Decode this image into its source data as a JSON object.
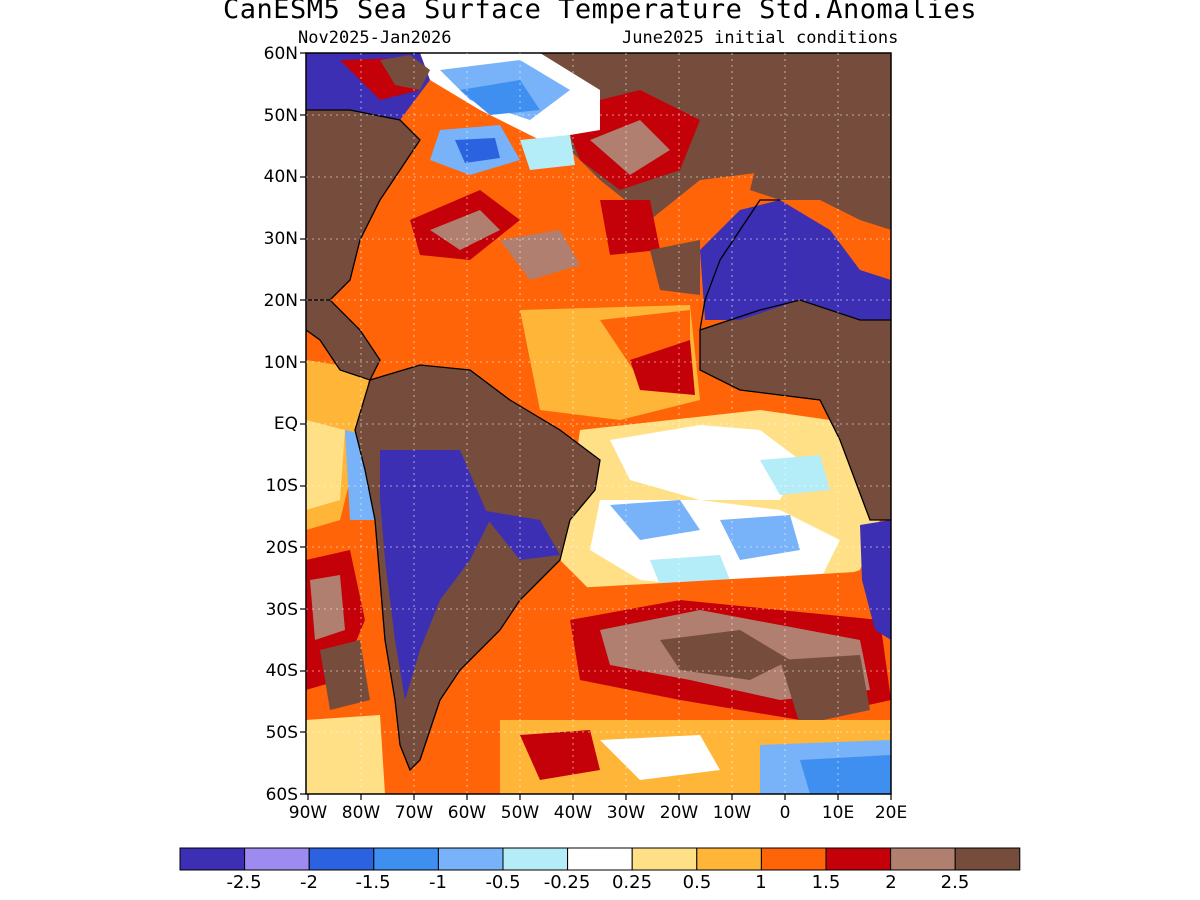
{
  "title": "CanESM5 Sea Surface Temperature Std.Anomalies",
  "subtitle_left": "Nov2025-Jan2026",
  "subtitle_right": "June2025 initial conditions",
  "y_axis_labels": [
    "60N",
    "50N",
    "40N",
    "30N",
    "20N",
    "10N",
    "EQ",
    "10S",
    "20S",
    "30S",
    "40S",
    "50S",
    "60S"
  ],
  "x_axis_labels": [
    "90W",
    "80W",
    "70W",
    "60W",
    "50W",
    "40W",
    "30W",
    "20W",
    "10W",
    "0",
    "10E",
    "20E"
  ],
  "colorbar": {
    "labels": [
      "-2.5",
      "-2",
      "-1.5",
      "-1",
      "-0.5",
      "-0.25",
      "0.25",
      "0.5",
      "1",
      "1.5",
      "2",
      "2.5"
    ],
    "colors": [
      "#3d2fb3",
      "#9d8bf0",
      "#2a62e0",
      "#3f8ff0",
      "#78b2f8",
      "#b4ecf8",
      "#ffffff",
      "#ffe086",
      "#ffb638",
      "#ff6408",
      "#c40008",
      "#b07f70",
      "#764c3c"
    ]
  },
  "land_color": "#764c3c"
}
